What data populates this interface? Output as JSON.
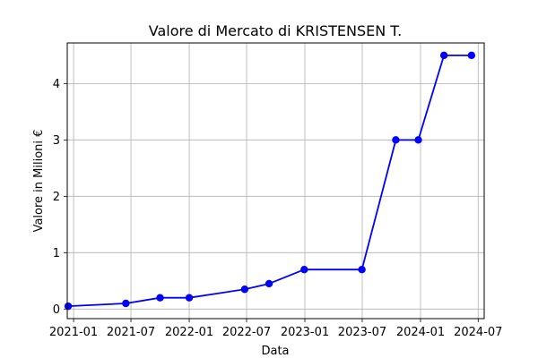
{
  "chart_data": {
    "type": "line",
    "title": "Valore di Mercato di KRISTENSEN T.",
    "xlabel": "Data",
    "ylabel": "Valore in Milioni €",
    "x_ticks": [
      "2021-01",
      "2021-07",
      "2022-01",
      "2022-07",
      "2023-01",
      "2023-07",
      "2024-01",
      "2024-07"
    ],
    "y_ticks": [
      0,
      1,
      2,
      3,
      4
    ],
    "xlim": [
      "2020-12-12",
      "2024-07-20"
    ],
    "ylim": [
      -0.17,
      4.72
    ],
    "grid": true,
    "series": [
      {
        "color": "#0000ff",
        "points": [
          {
            "x": "2020-12-15",
            "y": 0.05
          },
          {
            "x": "2021-06-15",
            "y": 0.1
          },
          {
            "x": "2021-10-01",
            "y": 0.2
          },
          {
            "x": "2022-01-01",
            "y": 0.2
          },
          {
            "x": "2022-06-25",
            "y": 0.35
          },
          {
            "x": "2022-09-10",
            "y": 0.45
          },
          {
            "x": "2022-12-30",
            "y": 0.7
          },
          {
            "x": "2023-06-30",
            "y": 0.7
          },
          {
            "x": "2023-10-15",
            "y": 3.0
          },
          {
            "x": "2023-12-25",
            "y": 3.0
          },
          {
            "x": "2024-03-15",
            "y": 4.5
          },
          {
            "x": "2024-06-10",
            "y": 4.5
          }
        ]
      }
    ]
  }
}
